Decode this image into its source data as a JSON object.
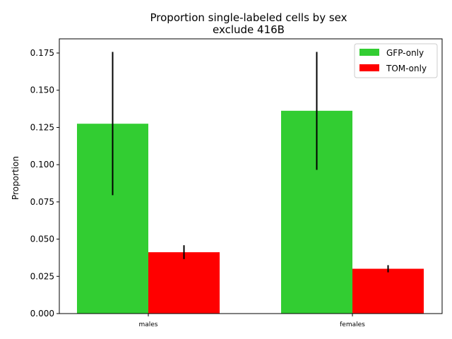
{
  "chart_data": {
    "type": "bar",
    "title_line1": "Proportion single-labeled cells by sex",
    "title_line2": "exclude 416B",
    "xlabel": "",
    "ylabel": "Proportion",
    "categories": [
      "males",
      "females"
    ],
    "ylim": [
      0,
      0.1845
    ],
    "yticks": [
      0.0,
      0.025,
      0.05,
      0.075,
      0.1,
      0.125,
      0.15,
      0.175
    ],
    "ytick_labels": [
      "0.000",
      "0.025",
      "0.050",
      "0.075",
      "0.100",
      "0.125",
      "0.150",
      "0.175"
    ],
    "grid": false,
    "legend_position": "top-right",
    "series": [
      {
        "name": "GFP-only",
        "color": "#32cd32",
        "values": [
          0.1275,
          0.1362
        ],
        "error_low": [
          0.0795,
          0.0965
        ],
        "error_high": [
          0.1757,
          0.1757
        ]
      },
      {
        "name": "TOM-only",
        "color": "#ff0000",
        "values": [
          0.0412,
          0.0301
        ],
        "error_low": [
          0.0366,
          0.0277
        ],
        "error_high": [
          0.0459,
          0.0325
        ]
      }
    ]
  }
}
